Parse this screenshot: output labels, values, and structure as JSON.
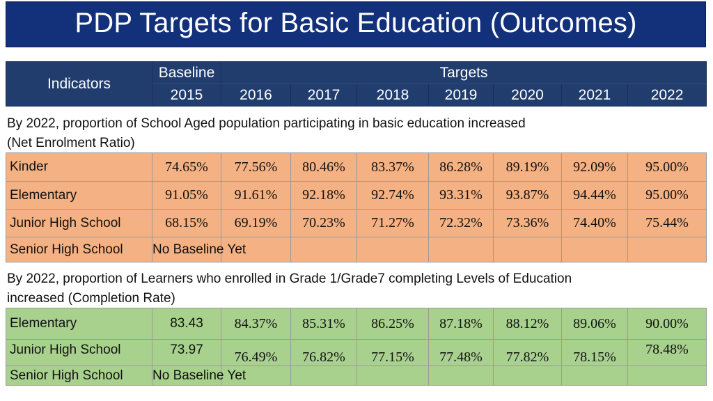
{
  "title": "PDP Targets for Basic Education (Outcomes)",
  "header": {
    "indicators": "Indicators",
    "baseline": "Baseline",
    "targets": "Targets",
    "years": [
      "2015",
      "2016",
      "2017",
      "2018",
      "2019",
      "2020",
      "2021",
      "2022"
    ]
  },
  "ner": {
    "intro_line1": "By 2022, proportion of School Aged population participating in basic education increased",
    "intro_line2": "(Net Enrolment Ratio)",
    "rows": [
      {
        "label": "Kinder",
        "values": [
          "74.65%",
          "77.56%",
          "80.46%",
          "83.37%",
          "86.28%",
          "89.19%",
          "92.09%",
          "95.00%"
        ]
      },
      {
        "label": "Elementary",
        "values": [
          "91.05%",
          "91.61%",
          "92.18%",
          "92.74%",
          "93.31%",
          "93.87%",
          "94.44%",
          "95.00%"
        ]
      },
      {
        "label": "Junior High School",
        "values": [
          "68.15%",
          "69.19%",
          "70.23%",
          "71.27%",
          "72.32%",
          "73.36%",
          "74.40%",
          "75.44%"
        ]
      },
      {
        "label": "Senior High School",
        "baseline_note": "No Baseline Yet"
      }
    ]
  },
  "completion": {
    "intro_line1": "By 2022, proportion of Learners who enrolled in Grade 1/Grade7 completing Levels of Education",
    "intro_line2": "increased (Completion Rate)",
    "rows": [
      {
        "label": "Elementary",
        "values": [
          "83.43",
          "84.37%",
          "85.31%",
          "86.25%",
          "87.18%",
          "88.12%",
          "89.06%",
          "90.00%"
        ]
      },
      {
        "label": "Junior High School",
        "values": [
          "73.97",
          "76.49%",
          "76.82%",
          "77.15%",
          "77.48%",
          "77.82%",
          "78.15%",
          "78.48%"
        ]
      },
      {
        "label": "Senior High School",
        "baseline_note": "No Baseline Yet"
      }
    ]
  }
}
